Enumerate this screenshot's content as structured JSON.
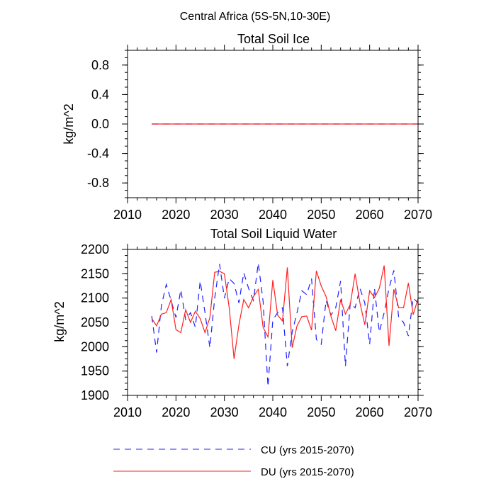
{
  "title": "Central Africa (5S-5N,10-30E)",
  "colors": {
    "cu": "#1f1fff",
    "du": "#ff2020"
  },
  "legend": [
    {
      "key": "cu",
      "label": "CU (yrs 2015-2070)"
    },
    {
      "key": "du",
      "label": "DU (yrs 2015-2070)"
    }
  ],
  "chart_data": [
    {
      "type": "line",
      "title": "Total Soil Ice",
      "ylabel": "kg/m^2",
      "xlabel": "",
      "xlim": [
        2010,
        2070
      ],
      "ylim": [
        -1.0,
        1.0
      ],
      "xticks": [
        2010,
        2020,
        2030,
        2040,
        2050,
        2060,
        2070
      ],
      "yticks": [
        -0.8,
        -0.4,
        0.0,
        0.4,
        0.8
      ],
      "ytick_labels": [
        "-0.8",
        "-0.4",
        "0.0",
        "0.4",
        "0.8"
      ],
      "x": [
        2015,
        2070
      ],
      "series": [
        {
          "name": "CU (yrs 2015-2070)",
          "key": "cu",
          "style": "dashed",
          "values": [
            0.0,
            0.0
          ]
        },
        {
          "name": "DU (yrs 2015-2070)",
          "key": "du",
          "style": "solid",
          "values": [
            0.0,
            0.0
          ]
        }
      ]
    },
    {
      "type": "line",
      "title": "Total Soil Liquid Water",
      "ylabel": "kg/m^2",
      "xlabel": "",
      "xlim": [
        2010,
        2070
      ],
      "ylim": [
        1900,
        2200
      ],
      "xticks": [
        2010,
        2020,
        2030,
        2040,
        2050,
        2060,
        2070
      ],
      "yticks": [
        1900,
        1950,
        2000,
        2050,
        2100,
        2150,
        2200
      ],
      "ytick_labels": [
        "1900",
        "1950",
        "2000",
        "2050",
        "2100",
        "2150",
        "2200"
      ],
      "x": [
        2015,
        2016,
        2017,
        2018,
        2019,
        2020,
        2021,
        2022,
        2023,
        2024,
        2025,
        2026,
        2027,
        2028,
        2029,
        2030,
        2031,
        2032,
        2033,
        2034,
        2035,
        2036,
        2037,
        2038,
        2039,
        2040,
        2041,
        2042,
        2043,
        2044,
        2045,
        2046,
        2047,
        2048,
        2049,
        2050,
        2051,
        2052,
        2053,
        2054,
        2055,
        2056,
        2057,
        2058,
        2059,
        2060,
        2061,
        2062,
        2063,
        2064,
        2065,
        2066,
        2067,
        2068,
        2069,
        2070
      ],
      "series": [
        {
          "name": "CU (yrs 2015-2070)",
          "key": "cu",
          "style": "dashed",
          "values": [
            2063,
            1988,
            2085,
            2128,
            2095,
            2060,
            2117,
            2056,
            2070,
            2040,
            2135,
            2070,
            1998,
            2100,
            2170,
            2100,
            2140,
            2130,
            2090,
            2152,
            2120,
            2095,
            2172,
            2093,
            1918,
            2055,
            2070,
            2080,
            1960,
            2030,
            2070,
            2115,
            2107,
            2140,
            2015,
            2005,
            2095,
            2065,
            2080,
            2135,
            1960,
            2090,
            2080,
            2120,
            2090,
            2005,
            2120,
            2030,
            2070,
            2120,
            2157,
            2060,
            2050,
            2022,
            2100,
            2090
          ]
        },
        {
          "name": "DU (yrs 2015-2070)",
          "key": "du",
          "style": "solid",
          "values": [
            2058,
            2043,
            2067,
            2070,
            2097,
            2035,
            2029,
            2076,
            2050,
            2073,
            2058,
            2029,
            2060,
            2153,
            2155,
            2150,
            2080,
            1975,
            2045,
            2097,
            2080,
            2103,
            2118,
            2040,
            2020,
            2137,
            2065,
            2053,
            2163,
            1998,
            2043,
            2062,
            2063,
            2034,
            2156,
            2125,
            2103,
            2063,
            2033,
            2097,
            2067,
            2087,
            2150,
            2090,
            2045,
            2115,
            2101,
            2120,
            2167,
            2002,
            2118,
            2080,
            2080,
            2131,
            2066,
            2099
          ]
        }
      ]
    }
  ]
}
